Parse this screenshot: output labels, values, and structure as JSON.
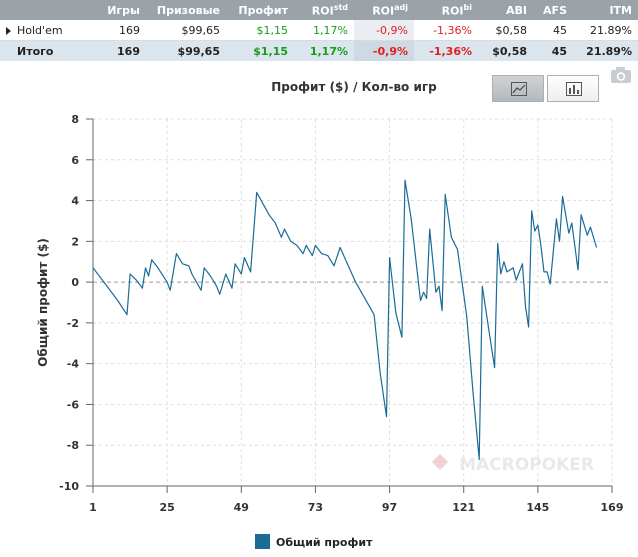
{
  "table": {
    "headers": [
      "",
      "Игры",
      "Призовые",
      "Профит",
      "ROI",
      "ROI",
      "ROI",
      "ABI",
      "AFS",
      "ITM"
    ],
    "roi_sup": [
      "std",
      "adj",
      "bi"
    ],
    "rows": [
      [
        "Hold'em",
        "169",
        "$99,65",
        "$1,15",
        "1,17%",
        "-0,9%",
        "-1,36%",
        "$0,58",
        "45",
        "21.89%"
      ],
      [
        "Итого",
        "169",
        "$99,65",
        "$1,15",
        "1,17%",
        "-0,9%",
        "-1,36%",
        "$0,58",
        "45",
        "21.89%"
      ]
    ]
  },
  "chart_data": {
    "type": "line",
    "title": "Профит ($) / Кол-во игр",
    "xlabel": "",
    "ylabel": "Общий профит ($)",
    "xlim": [
      1,
      169
    ],
    "ylim": [
      -10,
      8
    ],
    "x_ticks": [
      "1",
      "25",
      "49",
      "73",
      "97",
      "121",
      "145",
      "169"
    ],
    "x_tick_values": [
      1,
      25,
      49,
      73,
      97,
      121,
      145,
      169
    ],
    "y_ticks": [
      "8",
      "6",
      "4",
      "2",
      "0",
      "-2",
      "-4",
      "-6",
      "-8",
      "-10"
    ],
    "y_tick_values": [
      8,
      6,
      4,
      2,
      0,
      -2,
      -4,
      -6,
      -8,
      -10
    ],
    "grid": true,
    "legend_position": "bottom-center",
    "watermark": "MACROPOKER",
    "series": [
      {
        "name": "Общий профит",
        "color": "#1a6b96",
        "points": [
          [
            1,
            0.7
          ],
          [
            5,
            -0.1
          ],
          [
            9,
            -0.9
          ],
          [
            12,
            -1.6
          ],
          [
            13,
            0.4
          ],
          [
            15,
            0.1
          ],
          [
            17,
            -0.3
          ],
          [
            18,
            0.7
          ],
          [
            19,
            0.3
          ],
          [
            20,
            1.1
          ],
          [
            22,
            0.7
          ],
          [
            25,
            0.0
          ],
          [
            26,
            -0.4
          ],
          [
            28,
            1.4
          ],
          [
            30,
            0.9
          ],
          [
            32,
            0.8
          ],
          [
            33,
            0.4
          ],
          [
            36,
            -0.4
          ],
          [
            37,
            0.7
          ],
          [
            39,
            0.3
          ],
          [
            41,
            -0.2
          ],
          [
            42,
            -0.6
          ],
          [
            43,
            -0.1
          ],
          [
            44,
            0.4
          ],
          [
            46,
            -0.3
          ],
          [
            47,
            0.9
          ],
          [
            49,
            0.4
          ],
          [
            50,
            1.2
          ],
          [
            52,
            0.5
          ],
          [
            54,
            4.4
          ],
          [
            58,
            3.3
          ],
          [
            60,
            2.9
          ],
          [
            62,
            2.2
          ],
          [
            63,
            2.6
          ],
          [
            65,
            2.0
          ],
          [
            67,
            1.8
          ],
          [
            69,
            1.4
          ],
          [
            70,
            1.8
          ],
          [
            72,
            1.3
          ],
          [
            73,
            1.8
          ],
          [
            75,
            1.4
          ],
          [
            77,
            1.3
          ],
          [
            79,
            0.8
          ],
          [
            81,
            1.7
          ],
          [
            86,
            0.0
          ],
          [
            92,
            -1.6
          ],
          [
            94,
            -4.5
          ],
          [
            96,
            -6.6
          ],
          [
            97,
            1.2
          ],
          [
            99,
            -1.5
          ],
          [
            101,
            -2.7
          ],
          [
            102,
            5.0
          ],
          [
            104,
            3.1
          ],
          [
            107,
            -0.9
          ],
          [
            108,
            -0.5
          ],
          [
            109,
            -0.8
          ],
          [
            110,
            2.6
          ],
          [
            112,
            -0.5
          ],
          [
            113,
            -0.2
          ],
          [
            114,
            -1.4
          ],
          [
            115,
            4.3
          ],
          [
            117,
            2.2
          ],
          [
            119,
            1.6
          ],
          [
            122,
            -1.7
          ],
          [
            124,
            -5.4
          ],
          [
            126,
            -8.7
          ],
          [
            127,
            -0.2
          ],
          [
            129,
            -2.2
          ],
          [
            131,
            -4.2
          ],
          [
            132,
            1.9
          ],
          [
            133,
            0.4
          ],
          [
            134,
            1.0
          ],
          [
            135,
            0.5
          ],
          [
            137,
            0.7
          ],
          [
            138,
            0.1
          ],
          [
            140,
            0.9
          ],
          [
            141,
            -1.2
          ],
          [
            142,
            -2.2
          ],
          [
            143,
            3.5
          ],
          [
            144,
            2.5
          ],
          [
            145,
            2.8
          ],
          [
            146,
            1.8
          ],
          [
            147,
            0.5
          ],
          [
            148,
            0.5
          ],
          [
            149,
            -0.1
          ],
          [
            151,
            3.1
          ],
          [
            152,
            2.0
          ],
          [
            153,
            4.2
          ],
          [
            155,
            2.4
          ],
          [
            156,
            2.9
          ],
          [
            158,
            0.6
          ],
          [
            159,
            3.3
          ],
          [
            161,
            2.3
          ],
          [
            162,
            2.7
          ],
          [
            164,
            1.7
          ]
        ]
      }
    ]
  },
  "controls": {
    "line_view_icon": "line-chart-icon",
    "bar_view_icon": "bar-chart-icon",
    "camera_icon": "camera-icon"
  }
}
